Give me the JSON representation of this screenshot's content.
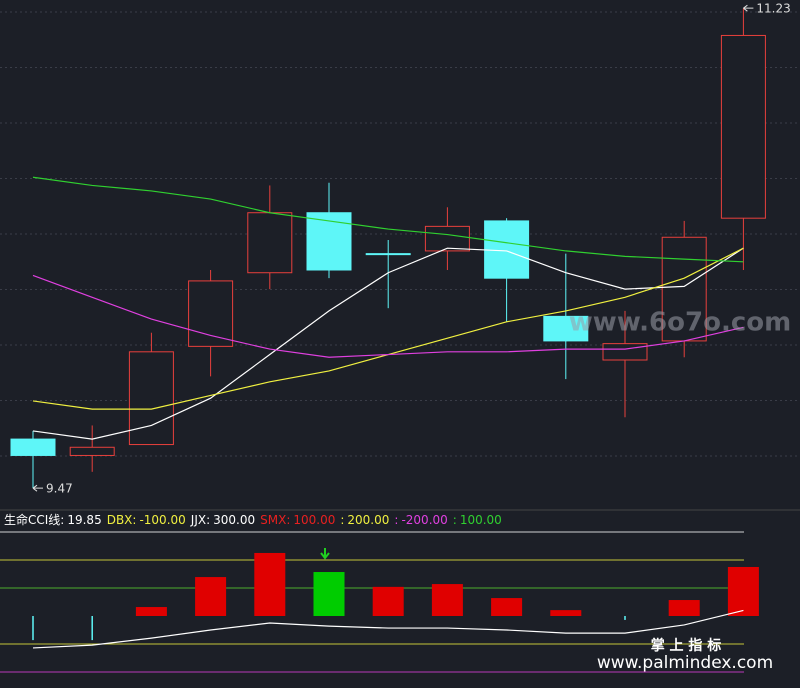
{
  "chart_data": [
    {
      "type": "candlestick",
      "open": [
        9.65,
        9.59,
        9.63,
        9.99,
        10.26,
        10.48,
        10.33,
        10.34,
        10.45,
        10.1,
        9.94,
        10.01,
        10.46
      ],
      "high": [
        9.68,
        9.7,
        10.04,
        10.27,
        10.58,
        10.59,
        10.38,
        10.5,
        10.46,
        10.33,
        10.12,
        10.45,
        11.23
      ],
      "low": [
        9.47,
        9.53,
        9.63,
        9.88,
        10.2,
        10.24,
        10.13,
        10.27,
        10.08,
        9.87,
        9.73,
        9.95,
        10.27
      ],
      "close": [
        9.59,
        9.62,
        9.97,
        10.23,
        10.48,
        10.27,
        10.33,
        10.43,
        10.24,
        10.01,
        10.0,
        10.39,
        11.13
      ],
      "up_color": "#e8403c",
      "down_color": "#5ef6f8",
      "series": [
        {
          "color": "#ffffff",
          "values": [
            9.68,
            9.65,
            9.7,
            9.8,
            9.96,
            10.12,
            10.26,
            10.35,
            10.34,
            10.26,
            10.2,
            10.21,
            10.35
          ]
        },
        {
          "color": "#f0f040",
          "values": [
            9.79,
            9.76,
            9.76,
            9.81,
            9.86,
            9.9,
            9.96,
            10.02,
            10.08,
            10.12,
            10.17,
            10.24,
            10.35
          ]
        },
        {
          "color": "#e040e0",
          "values": [
            10.25,
            10.17,
            10.09,
            10.03,
            9.98,
            9.95,
            9.96,
            9.97,
            9.97,
            9.98,
            9.98,
            10.01,
            10.06
          ]
        },
        {
          "color": "#30d030",
          "values": [
            10.61,
            10.58,
            10.56,
            10.53,
            10.48,
            10.45,
            10.42,
            10.4,
            10.37,
            10.34,
            10.32,
            10.31,
            10.3
          ]
        }
      ],
      "ylim": [
        9.39,
        11.26
      ],
      "high_marker": 11.23,
      "low_marker": 9.47
    },
    {
      "type": "bar",
      "indicator_name": "生命CCI线:",
      "indicator_value": "19.85",
      "values": [
        -86,
        -86,
        32,
        139,
        225,
        157,
        104,
        114,
        64,
        21,
        -14,
        57,
        175
      ],
      "colors": [
        "#5ef6f8",
        "#5ef6f8",
        "#e00000",
        "#e00000",
        "#e00000",
        "#00cc00",
        "#e00000",
        "#e00000",
        "#e00000",
        "#e00000",
        "#5ef6f8",
        "#e00000",
        "#e00000"
      ],
      "line": {
        "color": "#ffffff",
        "values": [
          -114,
          -104,
          -79,
          -50,
          -25,
          -36,
          -43,
          -43,
          -50,
          -61,
          -61,
          -32,
          20
        ]
      },
      "levels": [
        {
          "name": "DBX:",
          "value": -100,
          "label": "-100.00",
          "color": "#f0f040"
        },
        {
          "name": "JJX:",
          "value": 300,
          "label": "300.00",
          "color": "#ffffff"
        },
        {
          "name": "SMX:",
          "value": 100,
          "label": "100.00",
          "color": "#e82020"
        },
        {
          "name": ":",
          "value": 200,
          "label": "200.00",
          "color": "#f0f040"
        },
        {
          "name": ":",
          "value": -200,
          "label": "-200.00",
          "color": "#e040e0"
        },
        {
          "name": ":",
          "value": 100,
          "label": "100.00",
          "color": "#30d030"
        }
      ],
      "ylim": [
        -257,
        307
      ]
    }
  ],
  "watermarks": {
    "site": "www.6o7o.com",
    "brand": "掌 上 指 标",
    "url": "www.palmindex.com"
  }
}
